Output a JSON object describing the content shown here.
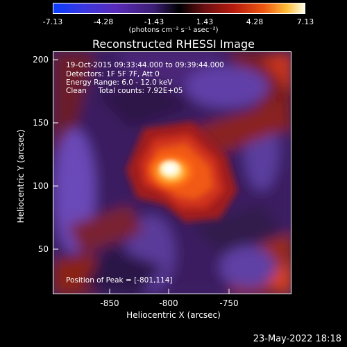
{
  "colorbar": {
    "ticks": [
      "-7.13",
      "-4.28",
      "-1.43",
      "1.43",
      "4.28",
      "7.13"
    ],
    "units": "(photons cm⁻² s⁻¹ asec⁻²)"
  },
  "plot": {
    "title": "Reconstructed RHESSI Image",
    "info_lines": [
      "19-Oct-2015 09:33:44.000 to 09:39:44.000",
      "Detectors: 1F 5F 7F, Att 0",
      "Energy Range: 6.0 - 12.0 keV",
      "Clean     Total counts: 7.92E+05"
    ],
    "peak_label": "Position of Peak = [-801,114]",
    "x_ticks": [
      "-850",
      "-800",
      "-750"
    ],
    "y_ticks": [
      "200",
      "150",
      "100",
      "50"
    ],
    "xlabel": "Heliocentric X (arcsec)",
    "ylabel": "Heliocentric Y (arcsec)"
  },
  "footer": {
    "timestamp": "23-May-2022 18:18"
  }
}
